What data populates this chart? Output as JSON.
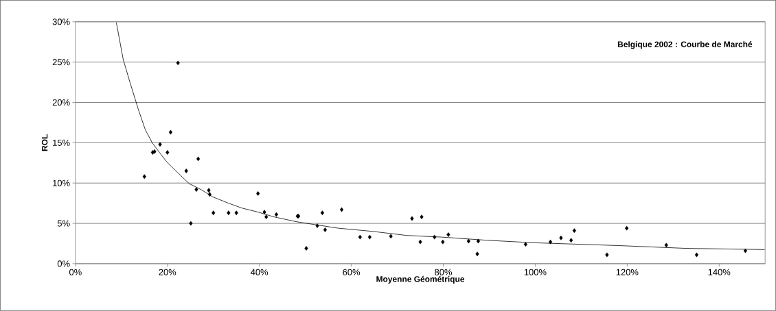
{
  "chart_data": {
    "type": "scatter",
    "xlabel": "Moyenne Géométrique",
    "ylabel": "ROL",
    "annotations": [
      "Belgique 2002 : Courbe de Marché"
    ],
    "xlim": [
      0,
      150
    ],
    "ylim": [
      0,
      30
    ],
    "xticks": [
      {
        "value": 0,
        "label": "0%"
      },
      {
        "value": 20,
        "label": "20%"
      },
      {
        "value": 40,
        "label": "40%"
      },
      {
        "value": 60,
        "label": "60%"
      },
      {
        "value": 80,
        "label": "80%"
      },
      {
        "value": 100,
        "label": "100%"
      },
      {
        "value": 120,
        "label": "120%"
      },
      {
        "value": 140,
        "label": "140%"
      }
    ],
    "yticks": [
      {
        "value": 0,
        "label": "0%"
      },
      {
        "value": 5,
        "label": "5%"
      },
      {
        "value": 10,
        "label": "10%"
      },
      {
        "value": 15,
        "label": "15%"
      },
      {
        "value": 20,
        "label": "20%"
      },
      {
        "value": 25,
        "label": "25%"
      },
      {
        "value": 30,
        "label": "30%"
      }
    ],
    "grid": "y",
    "marker": "diamond",
    "series": [
      {
        "color": "#000000",
        "x": [
          15.0,
          16.8,
          17.2,
          18.4,
          20.0,
          20.7,
          22.3,
          24.1,
          25.1,
          26.3,
          26.7,
          29.0,
          29.2,
          30.0,
          33.3,
          35.0,
          39.7,
          41.1,
          41.5,
          43.7,
          48.3,
          48.5,
          50.2,
          52.6,
          53.7,
          54.3,
          57.9,
          61.9,
          64.0,
          68.6,
          73.2,
          75.3,
          75.0,
          78.1,
          79.9,
          81.1,
          85.5,
          87.6,
          87.4,
          97.9,
          103.3,
          105.6,
          107.8,
          108.5,
          115.6,
          119.9,
          128.5,
          135.1,
          145.7
        ],
        "values": [
          10.8,
          13.8,
          13.9,
          14.8,
          13.8,
          16.3,
          24.9,
          11.5,
          5.0,
          9.2,
          13.0,
          9.1,
          8.6,
          6.3,
          6.3,
          6.3,
          8.7,
          6.4,
          5.8,
          6.1,
          5.9,
          5.9,
          1.9,
          4.7,
          6.3,
          4.2,
          6.7,
          3.3,
          3.3,
          3.4,
          5.6,
          5.8,
          2.7,
          3.3,
          2.7,
          3.6,
          2.8,
          2.8,
          1.2,
          2.4,
          2.7,
          3.2,
          2.9,
          4.1,
          1.1,
          4.4,
          2.3,
          1.1,
          1.6
        ]
      },
      {
        "type": "line",
        "color": "#000000",
        "marker": "none",
        "x": [
          8.9,
          10.4,
          11.7,
          13.7,
          15.2,
          16.7,
          18.4,
          19.9,
          22.4,
          24.8,
          27.3,
          29.8,
          33.3,
          36.2,
          39.7,
          43.2,
          48.1,
          52.6,
          57.2,
          64.7,
          72.1,
          79.6,
          89.6,
          99.5,
          117.9,
          132.8,
          149.9
        ],
        "values": [
          29.9,
          25.3,
          22.8,
          19.1,
          16.6,
          15.0,
          13.7,
          12.6,
          11.2,
          9.9,
          9.2,
          8.3,
          7.5,
          6.9,
          6.4,
          5.8,
          5.2,
          4.8,
          4.4,
          4.0,
          3.5,
          3.3,
          2.9,
          2.6,
          2.25,
          1.9,
          1.75
        ]
      }
    ]
  }
}
